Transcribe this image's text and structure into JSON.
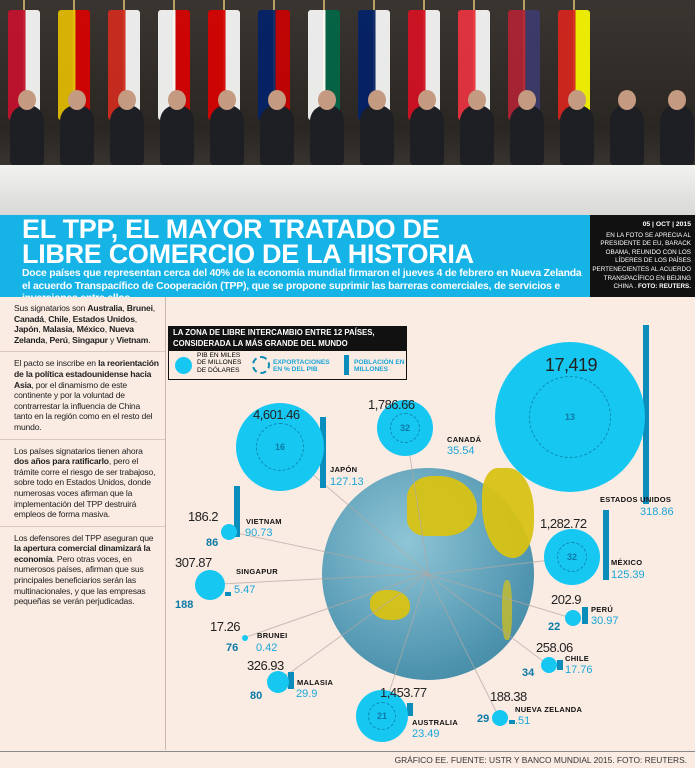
{
  "header": {
    "title_line1": "EL TPP, EL MAYOR TRATADO DE",
    "title_line2": "LIBRE COMERCIO DE LA HISTORIA",
    "lede": "Doce países que representan cerca del 40% de la economía mundial firmaron el jueves 4 de febrero en Nueva Zelanda el acuerdo Transpacífico de Cooperación (TPP), que se propone suprimir las barreras comerciales, de servicios e inversiones entre ellos."
  },
  "caption": {
    "date": "05 | OCT | 2015",
    "text": "EN LA FOTO SE APRECIA AL PRESIDENTE DE EU, BARACK OBAMA, REUNIDO CON LOS LÍDERES DE LOS PAÍSES PERTENECIENTES AL ACUERDO TRANSPACÍFICO EN BEIJING CHINA .",
    "credit": "FOTO: REUTERS."
  },
  "sidebar": {
    "p1": {
      "a": "Sus signatarios son ",
      "b": "Australia",
      "c": ", ",
      "d": "Brunei",
      "e": ", ",
      "f": "Canadá",
      "g": ", ",
      "h": "Chile",
      "i": ", ",
      "j": "Estados Unidos",
      "k": ", ",
      "l": "Japón",
      "m": ", ",
      "n": "Malasia",
      "o": ", ",
      "p": "México",
      "q": ", ",
      "r": "Nueva Zelanda",
      "s": ", ",
      "t": "Perú",
      "u": ", ",
      "v": "Singapur",
      "w": " y ",
      "x": "Vietnam",
      "y": "."
    },
    "p2": {
      "a": "El pacto se inscribe en ",
      "b": "la reorientación de la política estadounidense hacia Asia",
      "c": ", por el dinamismo de este continente y por la voluntad de contrarrestar la influencia de China tanto en la región como en el resto del mundo."
    },
    "p3": {
      "a": "Los países signatarios tienen ahora ",
      "b": "dos años para ratificarlo",
      "c": ", pero el trámite corre el riesgo de ser trabajoso, sobre todo en Estados Unidos, donde numerosas voces afirman que la implementación del TPP destruirá empleos de forma masiva."
    },
    "p4": {
      "a": "Los defensores del TPP aseguran que ",
      "b": "la apertura comercial dinamizará la economía",
      "c": ". Pero otras voces, en numerosos países, afirman que sus principales beneficiarios serán las multinacionales, y que las empresas pequeñas se verán perjudicadas."
    }
  },
  "chart_data": {
    "type": "bubble",
    "title": "LA ZONA DE LIBRE INTERCAMBIO ENTRE 12 PAÍSES, CONSIDERADA LA MÁS GRANDE DEL MUNDO",
    "legend": {
      "gdp": "PIB EN MILES DE MILLONES DE DÓLARES",
      "exports": "EXPORTACIONES EN % DEL PIB",
      "population": "POBLACIÓN EN MILLONES"
    },
    "colors": {
      "gdp": "#16c7f2",
      "exports": "#0b7aa6",
      "population": "#0a8dbb"
    },
    "series": [
      {
        "name": "ESTADOS UNIDOS",
        "gdp": "17,419",
        "exports": "13",
        "population": "318.86"
      },
      {
        "name": "JAPÓN",
        "gdp": "4,601.46",
        "exports": "16",
        "population": "127.13"
      },
      {
        "name": "CANADÁ",
        "gdp": "1,786.66",
        "exports": "32",
        "population": "35.54"
      },
      {
        "name": "MÉXICO",
        "gdp": "1,282.72",
        "exports": "32",
        "population": "125.39"
      },
      {
        "name": "VIETNAM",
        "gdp": "186.2",
        "exports": "86",
        "population": "90.73"
      },
      {
        "name": "SINGAPUR",
        "gdp": "307.87",
        "exports": "188",
        "population": "5.47"
      },
      {
        "name": "BRUNEI",
        "gdp": "17.26",
        "exports": "76",
        "population": "0.42"
      },
      {
        "name": "MALASIA",
        "gdp": "326.93",
        "exports": "80",
        "population": "29.9"
      },
      {
        "name": "AUSTRALIA",
        "gdp": "1,453.77",
        "exports": "21",
        "population": "23.49"
      },
      {
        "name": "NUEVA ZELANDA",
        "gdp": "188.38",
        "exports": "29",
        "population": ".51"
      },
      {
        "name": "CHILE",
        "gdp": "258.06",
        "exports": "34",
        "population": "17.76"
      },
      {
        "name": "PERÚ",
        "gdp": "202.9",
        "exports": "22",
        "population": "30.97"
      }
    ]
  },
  "footer": "GRÁFICO EE. FUENTE: USTR Y BANCO MUNDIAL 2015. FOTO: REUTERS."
}
